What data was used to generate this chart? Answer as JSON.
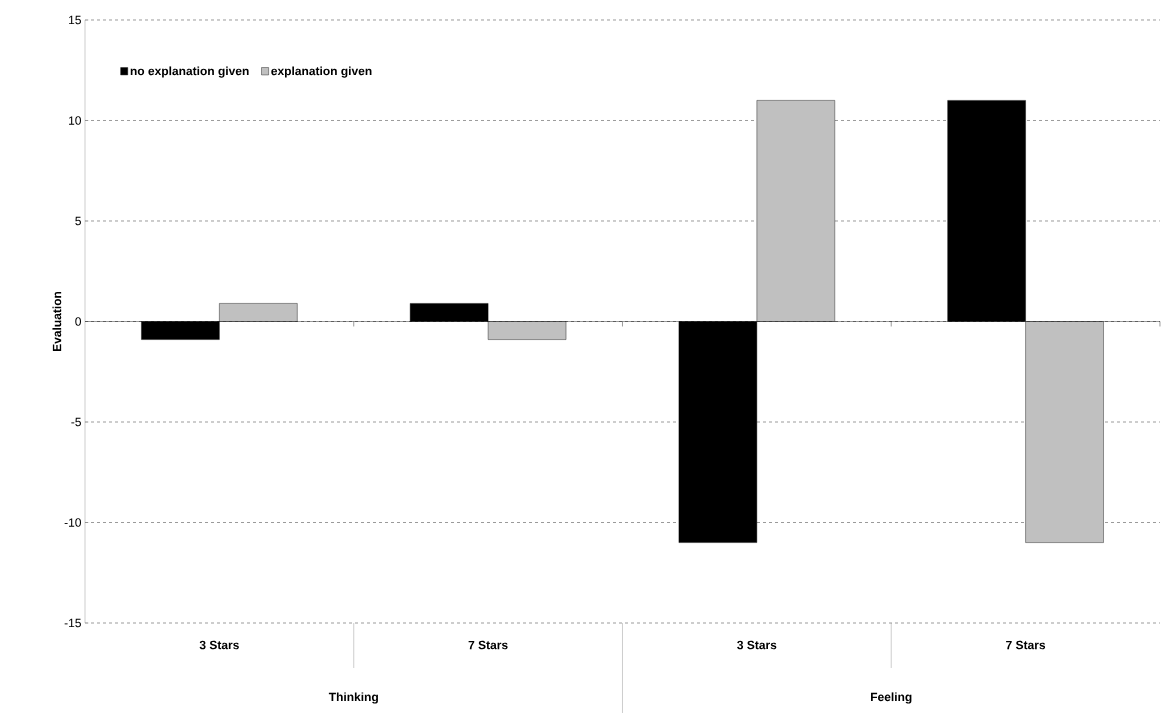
{
  "chart_data": {
    "type": "bar",
    "ylabel": "Evaluation",
    "categories": [
      "3 Stars",
      "7 Stars",
      "3 Stars",
      "7 Stars"
    ],
    "series": [
      {
        "name": "no explanation given",
        "color": "#000000",
        "values": [
          -0.9,
          0.9,
          -11,
          11
        ]
      },
      {
        "name": "explanation given",
        "color": "#c0c0c0",
        "values": [
          0.9,
          -0.9,
          11,
          -11
        ]
      }
    ],
    "annotations": [
      "Thinking",
      "Feeling"
    ],
    "ylim": [
      -15,
      15
    ],
    "yticks": [
      -15,
      -10,
      -5,
      0,
      5,
      10,
      15
    ],
    "grid": "y",
    "legend": "top left"
  }
}
